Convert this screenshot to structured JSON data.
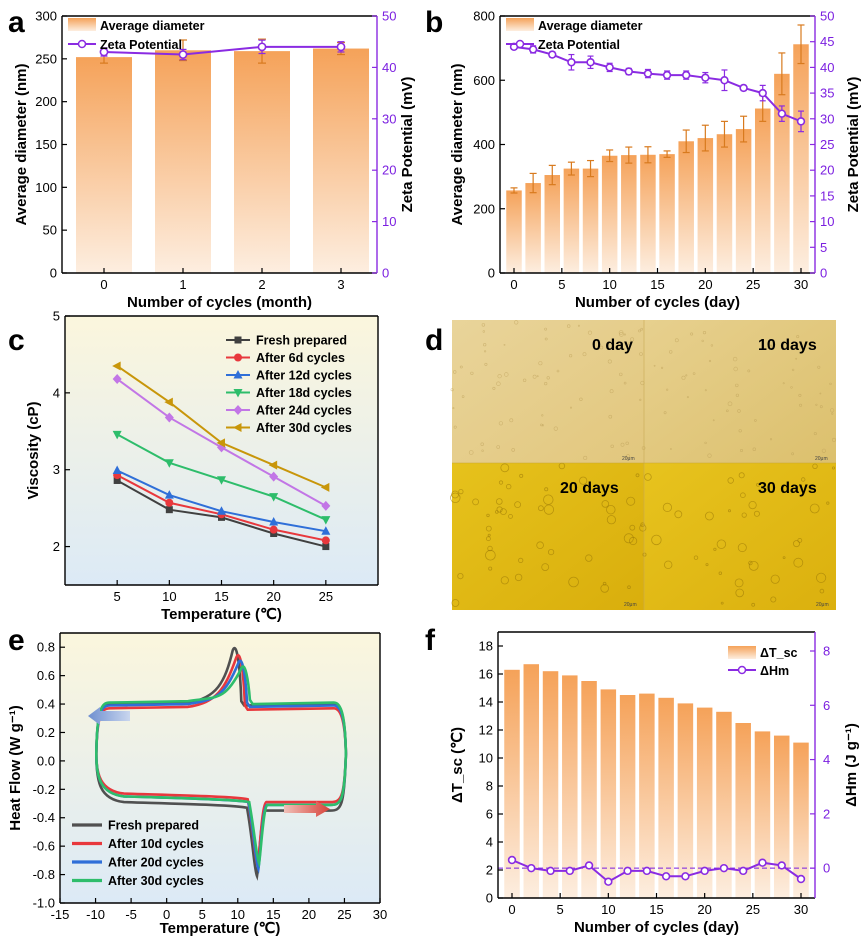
{
  "colors": {
    "bar_top": "#f5a259",
    "bar_bottom": "#fde9d6",
    "zeta": "#8a2be2",
    "dashline": "#7b1fe0",
    "bar_err": "#d87a1e"
  },
  "panels": {
    "a": "a",
    "b": "b",
    "c": "c",
    "d": "d",
    "e": "e",
    "f": "f"
  },
  "micrograph": {
    "labels": [
      "0 day",
      "10 days",
      "20 days",
      "30 days"
    ],
    "scale": "20μm"
  },
  "chart_data": [
    {
      "id": "a",
      "type": "bar",
      "xlabel": "Number of cycles (month)",
      "ylabel": "Average diameter (nm)",
      "y2label": "Zeta Potential (mV)",
      "categories": [
        0,
        1,
        2,
        3
      ],
      "ylim": [
        0,
        300
      ],
      "y2lim": [
        0,
        50
      ],
      "yticks": [
        0,
        50,
        100,
        150,
        200,
        250,
        300
      ],
      "y2ticks": [
        0,
        10,
        20,
        30,
        40,
        50
      ],
      "legend": [
        "Average diameter",
        "Zeta Potential"
      ],
      "series": [
        {
          "name": "Average diameter",
          "values": [
            252,
            260,
            259,
            262
          ],
          "errors": [
            7,
            12,
            14,
            7
          ]
        },
        {
          "name": "Zeta Potential",
          "axis": "right",
          "values": [
            43,
            42.5,
            44,
            44
          ],
          "errors": [
            0.8,
            1,
            1.3,
            1
          ]
        }
      ]
    },
    {
      "id": "b",
      "type": "bar",
      "xlabel": "Number of cycles (day)",
      "ylabel": "Average diameter (nm)",
      "y2label": "Zeta Potential (mV)",
      "categories": [
        0,
        2,
        4,
        6,
        8,
        10,
        12,
        14,
        16,
        18,
        20,
        22,
        24,
        26,
        28,
        30
      ],
      "xticks": [
        0,
        5,
        10,
        15,
        20,
        25,
        30
      ],
      "ylim": [
        0,
        800
      ],
      "y2lim": [
        0,
        50
      ],
      "yticks": [
        0,
        200,
        400,
        600,
        800
      ],
      "y2ticks": [
        0,
        5,
        10,
        15,
        20,
        25,
        30,
        35,
        40,
        45,
        50
      ],
      "legend": [
        "Average diameter",
        "Zeta Potential"
      ],
      "series": [
        {
          "name": "Average diameter",
          "values": [
            257,
            280,
            305,
            325,
            325,
            365,
            367,
            368,
            370,
            410,
            420,
            432,
            448,
            512,
            620,
            712
          ],
          "errors": [
            8,
            30,
            30,
            20,
            25,
            18,
            25,
            25,
            10,
            35,
            40,
            40,
            40,
            40,
            65,
            60
          ]
        },
        {
          "name": "Zeta Potential",
          "axis": "right",
          "values": [
            44,
            43.5,
            42.5,
            41,
            41,
            40,
            39.2,
            38.8,
            38.5,
            38.5,
            38,
            37.5,
            36,
            35,
            31,
            29.5
          ],
          "errors": [
            0.5,
            0.7,
            0.5,
            1.5,
            1.2,
            0.8,
            0.6,
            0.8,
            0.8,
            0.8,
            1,
            2,
            0.5,
            1.5,
            1.5,
            2
          ]
        }
      ]
    },
    {
      "id": "c",
      "type": "line",
      "xlabel": "Temperature (℃)",
      "ylabel": "Viscosity (cP)",
      "x": [
        5,
        10,
        15,
        20,
        25
      ],
      "xlim": [
        0,
        30
      ],
      "ylim": [
        1.5,
        5.0
      ],
      "yticks": [
        2,
        3,
        4,
        5
      ],
      "xticks": [
        5,
        10,
        15,
        20,
        25
      ],
      "series": [
        {
          "name": "Fresh prepared",
          "color": "#404040",
          "marker": "square",
          "values": [
            2.86,
            2.48,
            2.38,
            2.17,
            2.0
          ]
        },
        {
          "name": "After 6d cycles",
          "color": "#e8383d",
          "marker": "circle",
          "values": [
            2.93,
            2.57,
            2.42,
            2.22,
            2.08
          ]
        },
        {
          "name": "After 12d cycles",
          "color": "#2f6fd8",
          "marker": "triangle-up",
          "values": [
            2.99,
            2.67,
            2.46,
            2.32,
            2.2
          ]
        },
        {
          "name": "After 18d cycles",
          "color": "#2ebd6b",
          "marker": "triangle-down",
          "values": [
            3.46,
            3.09,
            2.87,
            2.65,
            2.35
          ]
        },
        {
          "name": "After 24d cycles",
          "color": "#c276e6",
          "marker": "diamond",
          "values": [
            4.18,
            3.68,
            3.29,
            2.91,
            2.53
          ]
        },
        {
          "name": "After 30d cycles",
          "color": "#c8960a",
          "marker": "triangle-left",
          "values": [
            4.35,
            3.88,
            3.35,
            3.06,
            2.77
          ]
        }
      ]
    },
    {
      "id": "e",
      "type": "line",
      "xlabel": "Temperature (℃)",
      "ylabel": "Heat Flow (W g⁻¹)",
      "xlim": [
        -15,
        30
      ],
      "ylim": [
        -1.0,
        0.9
      ],
      "xticks": [
        -15,
        -10,
        -5,
        0,
        5,
        10,
        15,
        20,
        25,
        30
      ],
      "yticks": [
        -1.0,
        -0.8,
        -0.6,
        -0.4,
        -0.2,
        0.0,
        0.2,
        0.4,
        0.6,
        0.8
      ],
      "ytick_labels": [
        "-1.0",
        "-0.8",
        "-0.6",
        "-0.4",
        "-0.2",
        "0.0",
        "0.2",
        "0.4",
        "0.6",
        "0.8"
      ],
      "series": [
        {
          "name": "Fresh prepared",
          "color": "#505050",
          "upper": 0.4,
          "lower": -0.35,
          "peak_x": 9.5,
          "peak_y": 0.8,
          "dip_x": 12.7,
          "dip_y": -0.81
        },
        {
          "name": "After 10d cycles",
          "color": "#e8383d",
          "upper": 0.37,
          "lower": -0.29,
          "peak_x": 10.0,
          "peak_y": 0.75,
          "dip_x": 12.8,
          "dip_y": -0.74
        },
        {
          "name": "After 20d cycles",
          "color": "#2f6fd8",
          "upper": 0.39,
          "lower": -0.31,
          "peak_x": 10.3,
          "peak_y": 0.71,
          "dip_x": 12.9,
          "dip_y": -0.76
        },
        {
          "name": "After 30d cycles",
          "color": "#2ebd6b",
          "upper": 0.41,
          "lower": -0.31,
          "peak_x": 10.7,
          "peak_y": 0.67,
          "dip_x": 13.0,
          "dip_y": -0.72
        }
      ]
    },
    {
      "id": "f",
      "type": "bar",
      "xlabel": "Number of cycles (day)",
      "ylabel": "ΔT_sc (℃)",
      "y2label": "ΔHm (J g⁻¹)",
      "categories": [
        0,
        2,
        4,
        6,
        8,
        10,
        12,
        14,
        16,
        18,
        20,
        22,
        24,
        26,
        28,
        30
      ],
      "xticks": [
        0,
        5,
        10,
        15,
        20,
        25,
        30
      ],
      "ylim": [
        0,
        19
      ],
      "y2lim": [
        -1.1,
        8.7
      ],
      "yticks": [
        0,
        2,
        4,
        6,
        8,
        10,
        12,
        14,
        16,
        18
      ],
      "y2ticks": [
        0,
        2,
        4,
        6,
        8
      ],
      "legend": [
        "ΔT_sc",
        "ΔHm"
      ],
      "series": [
        {
          "name": "ΔT_sc",
          "values": [
            16.3,
            16.7,
            16.2,
            15.9,
            15.5,
            14.9,
            14.5,
            14.6,
            14.3,
            13.9,
            13.6,
            13.3,
            12.5,
            11.9,
            11.6,
            11.1
          ]
        },
        {
          "name": "ΔHm",
          "axis": "right",
          "values": [
            0.3,
            0.0,
            -0.1,
            -0.1,
            0.1,
            -0.5,
            -0.1,
            -0.1,
            -0.3,
            -0.3,
            -0.1,
            0.0,
            -0.1,
            0.2,
            0.1,
            -0.4
          ]
        }
      ]
    }
  ]
}
